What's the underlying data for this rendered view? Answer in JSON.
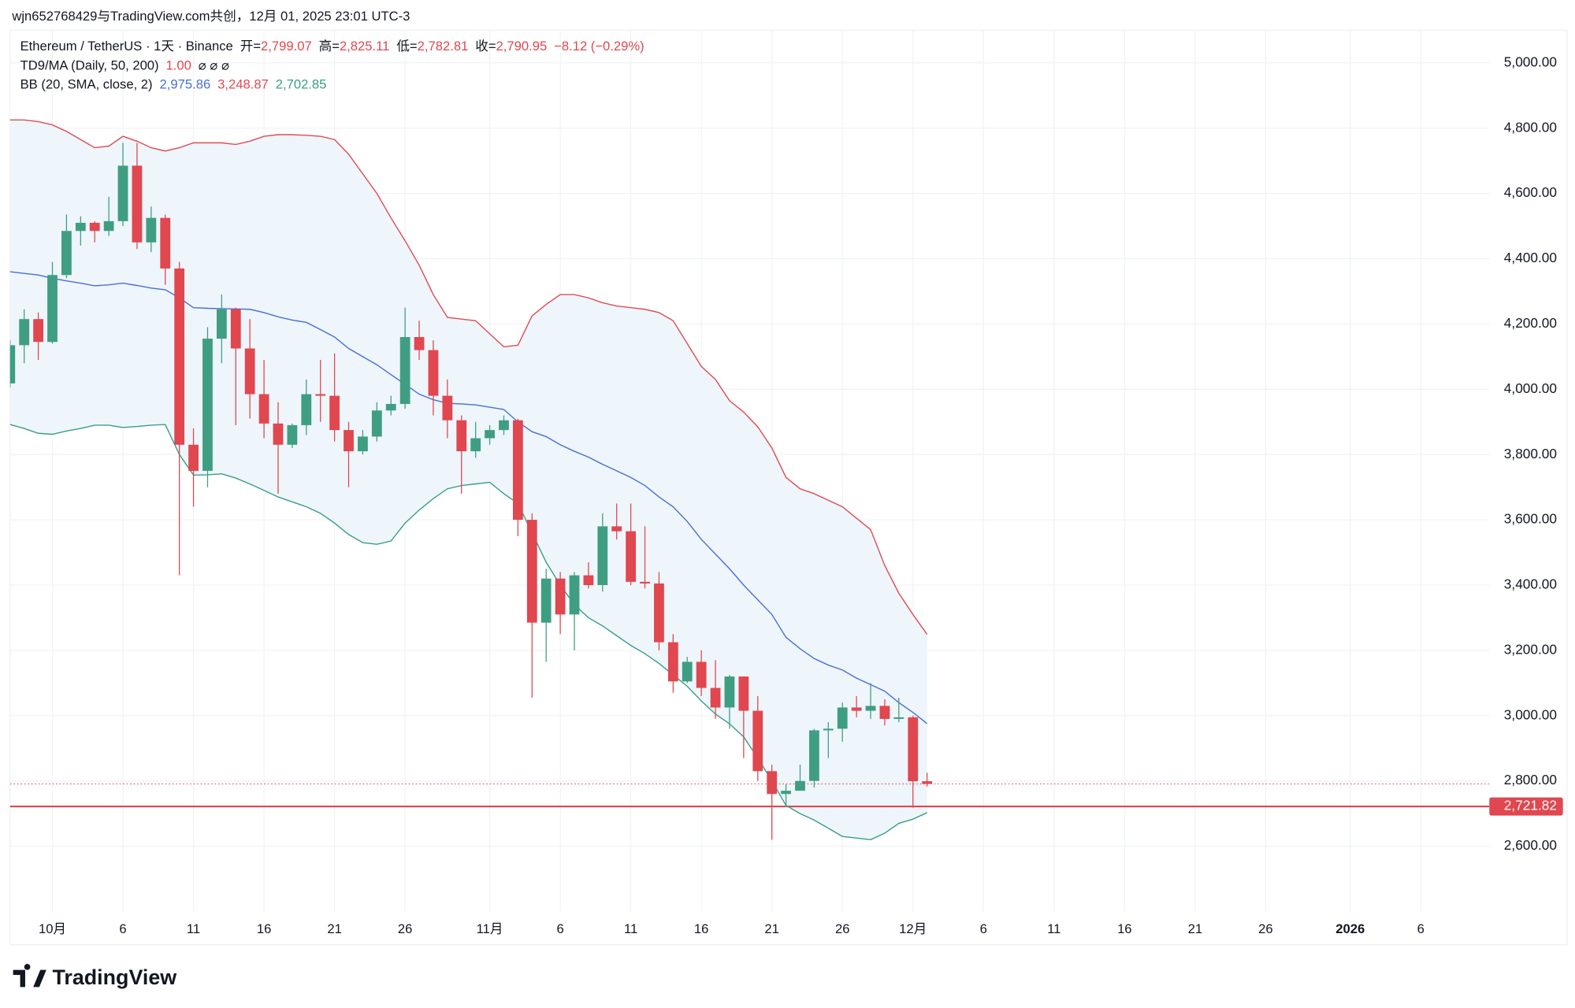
{
  "chart_data": {
    "type": "candlestick",
    "watermark": "wjn652768429与TradingView.com共创，12月 01, 2025 23:01 UTC-3",
    "logo": "TradingView",
    "legend": {
      "symbol": "Ethereum / TetherUS · 1天 · Binance",
      "ohlc": [
        {
          "label": "开=",
          "value": "2,799.07"
        },
        {
          "label": "高=",
          "value": "2,825.11"
        },
        {
          "label": "低=",
          "value": "2,782.81"
        },
        {
          "label": "收=",
          "value": "2,790.95"
        }
      ],
      "change": "−8.12 (−0.29%)",
      "indicators": [
        {
          "name": "TD9/MA (Daily, 50, 200)",
          "values": [
            "1.00"
          ],
          "colors": [
            "#e0474f"
          ],
          "symbols": "⌀  ⌀  ⌀"
        },
        {
          "name": "BB (20, SMA, close, 2)",
          "values": [
            "2,975.86",
            "3,248.87",
            "2,702.85"
          ],
          "colors": [
            "#4a6fd4",
            "#e04c52",
            "#3a9e86"
          ]
        }
      ]
    },
    "up_color": "#3f9e82",
    "down_color": "#e0474f",
    "x": [
      "2025-09-28",
      "2025-09-29",
      "2025-09-30",
      "2025-10-01",
      "2025-10-02",
      "2025-10-03",
      "2025-10-04",
      "2025-10-05",
      "2025-10-06",
      "2025-10-07",
      "2025-10-08",
      "2025-10-09",
      "2025-10-10",
      "2025-10-11",
      "2025-10-12",
      "2025-10-13",
      "2025-10-14",
      "2025-10-15",
      "2025-10-16",
      "2025-10-17",
      "2025-10-18",
      "2025-10-19",
      "2025-10-20",
      "2025-10-21",
      "2025-10-22",
      "2025-10-23",
      "2025-10-24",
      "2025-10-25",
      "2025-10-26",
      "2025-10-27",
      "2025-10-28",
      "2025-10-29",
      "2025-10-30",
      "2025-10-31",
      "2025-11-01",
      "2025-11-02",
      "2025-11-03",
      "2025-11-04",
      "2025-11-05",
      "2025-11-06",
      "2025-11-07",
      "2025-11-08",
      "2025-11-09",
      "2025-11-10",
      "2025-11-11",
      "2025-11-12",
      "2025-11-13",
      "2025-11-14",
      "2025-11-15",
      "2025-11-16",
      "2025-11-17",
      "2025-11-18",
      "2025-11-19",
      "2025-11-20",
      "2025-11-21",
      "2025-11-22",
      "2025-11-23",
      "2025-11-24",
      "2025-11-25",
      "2025-11-26",
      "2025-11-27",
      "2025-11-28",
      "2025-11-29",
      "2025-11-30",
      "2025-12-01",
      "2025-12-02"
    ],
    "open": [
      4018,
      4135,
      4215,
      4145,
      4350,
      4485,
      4510,
      4485,
      4515,
      4685,
      4450,
      4525,
      4370,
      3830,
      3750,
      4155,
      4245,
      4125,
      3985,
      3895,
      3830,
      3890,
      3985,
      3980,
      3875,
      3810,
      3855,
      3935,
      3955,
      4160,
      4120,
      3980,
      3905,
      3810,
      3850,
      3875,
      3905,
      3600,
      3285,
      3420,
      3310,
      3430,
      3400,
      3580,
      3565,
      3410,
      3405,
      3225,
      3105,
      3165,
      3085,
      3025,
      3120,
      3015,
      2830,
      2760,
      2770,
      2800,
      2955,
      2960,
      3025,
      3015,
      3030,
      2990,
      2995,
      2799.07
    ],
    "high": [
      4150,
      4245,
      4235,
      4390,
      4535,
      4530,
      4515,
      4590,
      4755,
      4755,
      4560,
      4535,
      4390,
      3880,
      4190,
      4290,
      4250,
      4215,
      4090,
      3960,
      3895,
      4030,
      4090,
      4110,
      3900,
      3875,
      3960,
      3980,
      4250,
      4210,
      4150,
      4030,
      3920,
      3900,
      3890,
      3920,
      3910,
      3620,
      3450,
      3440,
      3440,
      3470,
      3620,
      3650,
      3650,
      3580,
      3440,
      3250,
      3180,
      3200,
      3170,
      3125,
      3120,
      3060,
      2850,
      2790,
      2850,
      2960,
      2980,
      3040,
      3060,
      3100,
      3050,
      3055,
      3000,
      2825.11
    ],
    "low": [
      4005,
      4080,
      4090,
      4140,
      4340,
      4440,
      4450,
      4470,
      4500,
      4430,
      4420,
      4320,
      3430,
      3640,
      3700,
      4080,
      3890,
      3910,
      3850,
      3680,
      3820,
      3860,
      3900,
      3840,
      3700,
      3800,
      3840,
      3920,
      3940,
      4090,
      3920,
      3850,
      3680,
      3790,
      3830,
      3860,
      3550,
      3055,
      3165,
      3250,
      3200,
      3390,
      3380,
      3540,
      3400,
      3390,
      3200,
      3070,
      3100,
      3060,
      2990,
      2960,
      2870,
      2800,
      2620,
      2720,
      2770,
      2780,
      2870,
      2920,
      2995,
      2990,
      2970,
      2980,
      2718,
      2782.81
    ],
    "close": [
      4135,
      4215,
      4145,
      4350,
      4485,
      4510,
      4485,
      4515,
      4685,
      4450,
      4525,
      4370,
      3830,
      3750,
      4155,
      4245,
      4125,
      3985,
      3895,
      3830,
      3890,
      3985,
      3980,
      3875,
      3810,
      3855,
      3935,
      3955,
      4160,
      4120,
      3980,
      3905,
      3810,
      3850,
      3875,
      3905,
      3600,
      3285,
      3420,
      3310,
      3430,
      3400,
      3580,
      3565,
      3410,
      3405,
      3225,
      3105,
      3165,
      3085,
      3025,
      3120,
      3015,
      2830,
      2760,
      2770,
      2800,
      2955,
      2960,
      3025,
      3015,
      3030,
      2990,
      2995,
      2799,
      2790.95
    ],
    "overlays": [
      {
        "color": "#4a6fd4",
        "values": [
          4360,
          4355,
          4350,
          4340,
          4332,
          4325,
          4317,
          4320,
          4325,
          4318,
          4310,
          4305,
          4280,
          4250,
          4248,
          4247,
          4246,
          4245,
          4235,
          4222,
          4212,
          4205,
          4183,
          4160,
          4125,
          4100,
          4075,
          4045,
          4015,
          3985,
          3968,
          3957,
          3955,
          3952,
          3945,
          3938,
          3900,
          3870,
          3855,
          3830,
          3810,
          3792,
          3770,
          3750,
          3730,
          3705,
          3670,
          3640,
          3595,
          3540,
          3495,
          3450,
          3400,
          3355,
          3310,
          3240,
          3205,
          3175,
          3155,
          3140,
          3115,
          3095,
          3075,
          3040,
          3010,
          2975.86
        ]
      },
      {
        "color": "#e04c52",
        "values": [
          4825,
          4825,
          4820,
          4810,
          4790,
          4765,
          4740,
          4745,
          4775,
          4760,
          4740,
          4730,
          4740,
          4755,
          4755,
          4755,
          4750,
          4760,
          4775,
          4780,
          4780,
          4778,
          4775,
          4765,
          4720,
          4660,
          4600,
          4525,
          4455,
          4380,
          4290,
          4220,
          4215,
          4210,
          4170,
          4130,
          4135,
          4225,
          4260,
          4290,
          4290,
          4280,
          4265,
          4255,
          4250,
          4245,
          4235,
          4210,
          4140,
          4070,
          4030,
          3965,
          3930,
          3885,
          3820,
          3730,
          3695,
          3680,
          3660,
          3640,
          3605,
          3570,
          3460,
          3375,
          3310,
          3248.87
        ]
      },
      {
        "color": "#3a9e86",
        "values": [
          3892,
          3880,
          3865,
          3862,
          3872,
          3880,
          3890,
          3890,
          3883,
          3886,
          3890,
          3892,
          3800,
          3737,
          3738,
          3741,
          3728,
          3710,
          3690,
          3670,
          3655,
          3640,
          3620,
          3590,
          3555,
          3530,
          3525,
          3535,
          3590,
          3630,
          3665,
          3695,
          3705,
          3710,
          3715,
          3680,
          3650,
          3560,
          3470,
          3400,
          3340,
          3300,
          3275,
          3245,
          3215,
          3190,
          3160,
          3125,
          3090,
          3045,
          3005,
          2975,
          2935,
          2870,
          2800,
          2725,
          2700,
          2680,
          2655,
          2630,
          2625,
          2620,
          2640,
          2670,
          2683,
          2702.85
        ]
      }
    ],
    "band_fill": "#eef5fb",
    "price_lines": [
      {
        "value": 2721.82,
        "label": "2,721.82",
        "color": "#e0474f",
        "style": "solid"
      },
      {
        "value": 2790.95,
        "color": "#e0474f",
        "style": "dotted"
      }
    ],
    "xlim": [
      "2025-09-28",
      "2026-01-11"
    ],
    "xticks": [
      {
        "value": "2025-10-01",
        "label": "10月"
      },
      {
        "value": "2025-10-06",
        "label": "6"
      },
      {
        "value": "2025-10-11",
        "label": "11"
      },
      {
        "value": "2025-10-16",
        "label": "16"
      },
      {
        "value": "2025-10-21",
        "label": "21"
      },
      {
        "value": "2025-10-26",
        "label": "26"
      },
      {
        "value": "2025-11-01",
        "label": "11月"
      },
      {
        "value": "2025-11-06",
        "label": "6"
      },
      {
        "value": "2025-11-11",
        "label": "11"
      },
      {
        "value": "2025-11-16",
        "label": "16"
      },
      {
        "value": "2025-11-21",
        "label": "21"
      },
      {
        "value": "2025-11-26",
        "label": "26"
      },
      {
        "value": "2025-12-01",
        "label": "12月"
      },
      {
        "value": "2025-12-06",
        "label": "6"
      },
      {
        "value": "2025-12-11",
        "label": "11"
      },
      {
        "value": "2025-12-16",
        "label": "16"
      },
      {
        "value": "2025-12-21",
        "label": "21"
      },
      {
        "value": "2025-12-26",
        "label": "26"
      },
      {
        "value": "2026-01-01",
        "label": "2026",
        "bold": true
      },
      {
        "value": "2026-01-06",
        "label": "6"
      }
    ],
    "ylim": [
      2400,
      5100
    ],
    "yticks": [
      {
        "value": 2600,
        "label": "2,600.00"
      },
      {
        "value": 2800,
        "label": "2,800.00"
      },
      {
        "value": 3000,
        "label": "3,000.00"
      },
      {
        "value": 3200,
        "label": "3,200.00"
      },
      {
        "value": 3400,
        "label": "3,400.00"
      },
      {
        "value": 3600,
        "label": "3,600.00"
      },
      {
        "value": 3800,
        "label": "3,800.00"
      },
      {
        "value": 4000,
        "label": "4,000.00"
      },
      {
        "value": 4200,
        "label": "4,200.00"
      },
      {
        "value": 4400,
        "label": "4,400.00"
      },
      {
        "value": 4600,
        "label": "4,600.00"
      },
      {
        "value": 4800,
        "label": "4,800.00"
      },
      {
        "value": 5000,
        "label": "5,000.00"
      }
    ],
    "grid": true
  }
}
